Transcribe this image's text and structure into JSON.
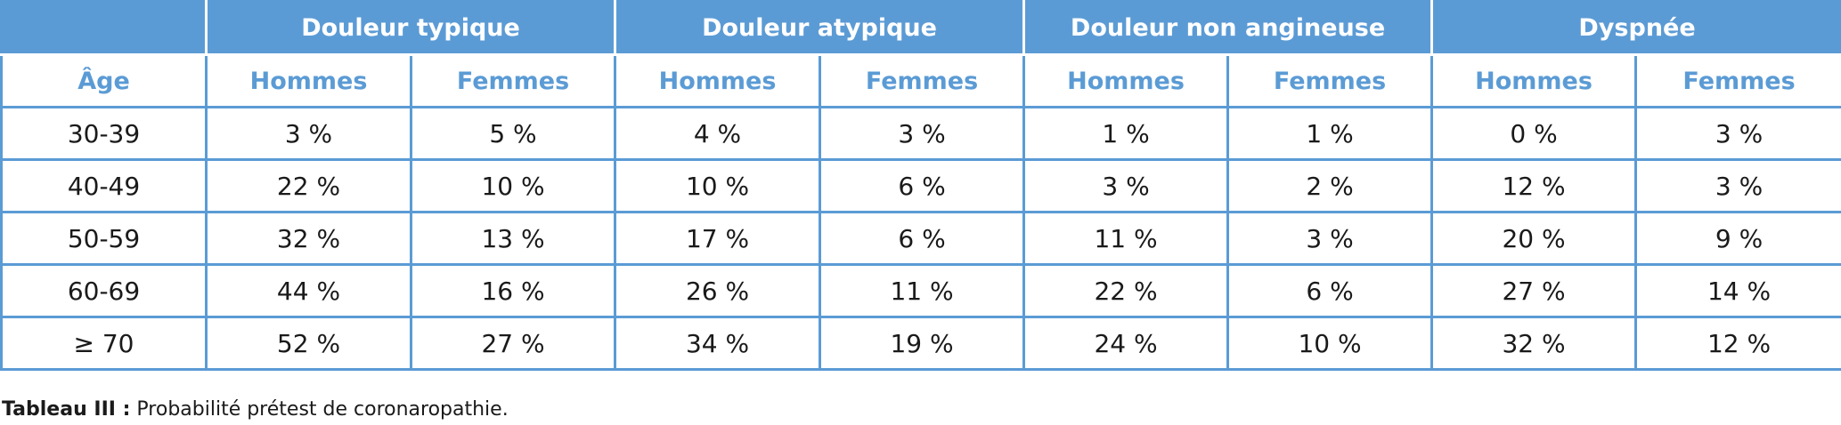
{
  "table": {
    "groups": [
      "",
      "Douleur typique",
      "Douleur atypique",
      "Douleur non angineuse",
      "Dyspnée"
    ],
    "subheaders": [
      "Âge",
      "Hommes",
      "Femmes",
      "Hommes",
      "Femmes",
      "Hommes",
      "Femmes",
      "Hommes",
      "Femmes"
    ],
    "rows": [
      [
        "30-39",
        "3 %",
        "5 %",
        "4 %",
        "3 %",
        "1 %",
        "1 %",
        "0 %",
        "3 %"
      ],
      [
        "40-49",
        "22 %",
        "10 %",
        "10 %",
        "6 %",
        "3 %",
        "2 %",
        "12 %",
        "3 %"
      ],
      [
        "50-59",
        "32 %",
        "13 %",
        "17 %",
        "6 %",
        "11 %",
        "3 %",
        "20 %",
        "9 %"
      ],
      [
        "60-69",
        "44 %",
        "16 %",
        "26 %",
        "11 %",
        "22 %",
        "6 %",
        "27 %",
        "14 %"
      ],
      [
        "≥ 70",
        "52 %",
        "27 %",
        "34 %",
        "19 %",
        "24 %",
        "10 %",
        "32 %",
        "12 %"
      ]
    ]
  },
  "caption": {
    "label": "Tableau III :",
    "text": " Probabilité prétest de coronaropathie."
  },
  "colors": {
    "accent": "#5b9bd5",
    "header_text": "#ffffff",
    "body_text": "#1a1a1a"
  }
}
